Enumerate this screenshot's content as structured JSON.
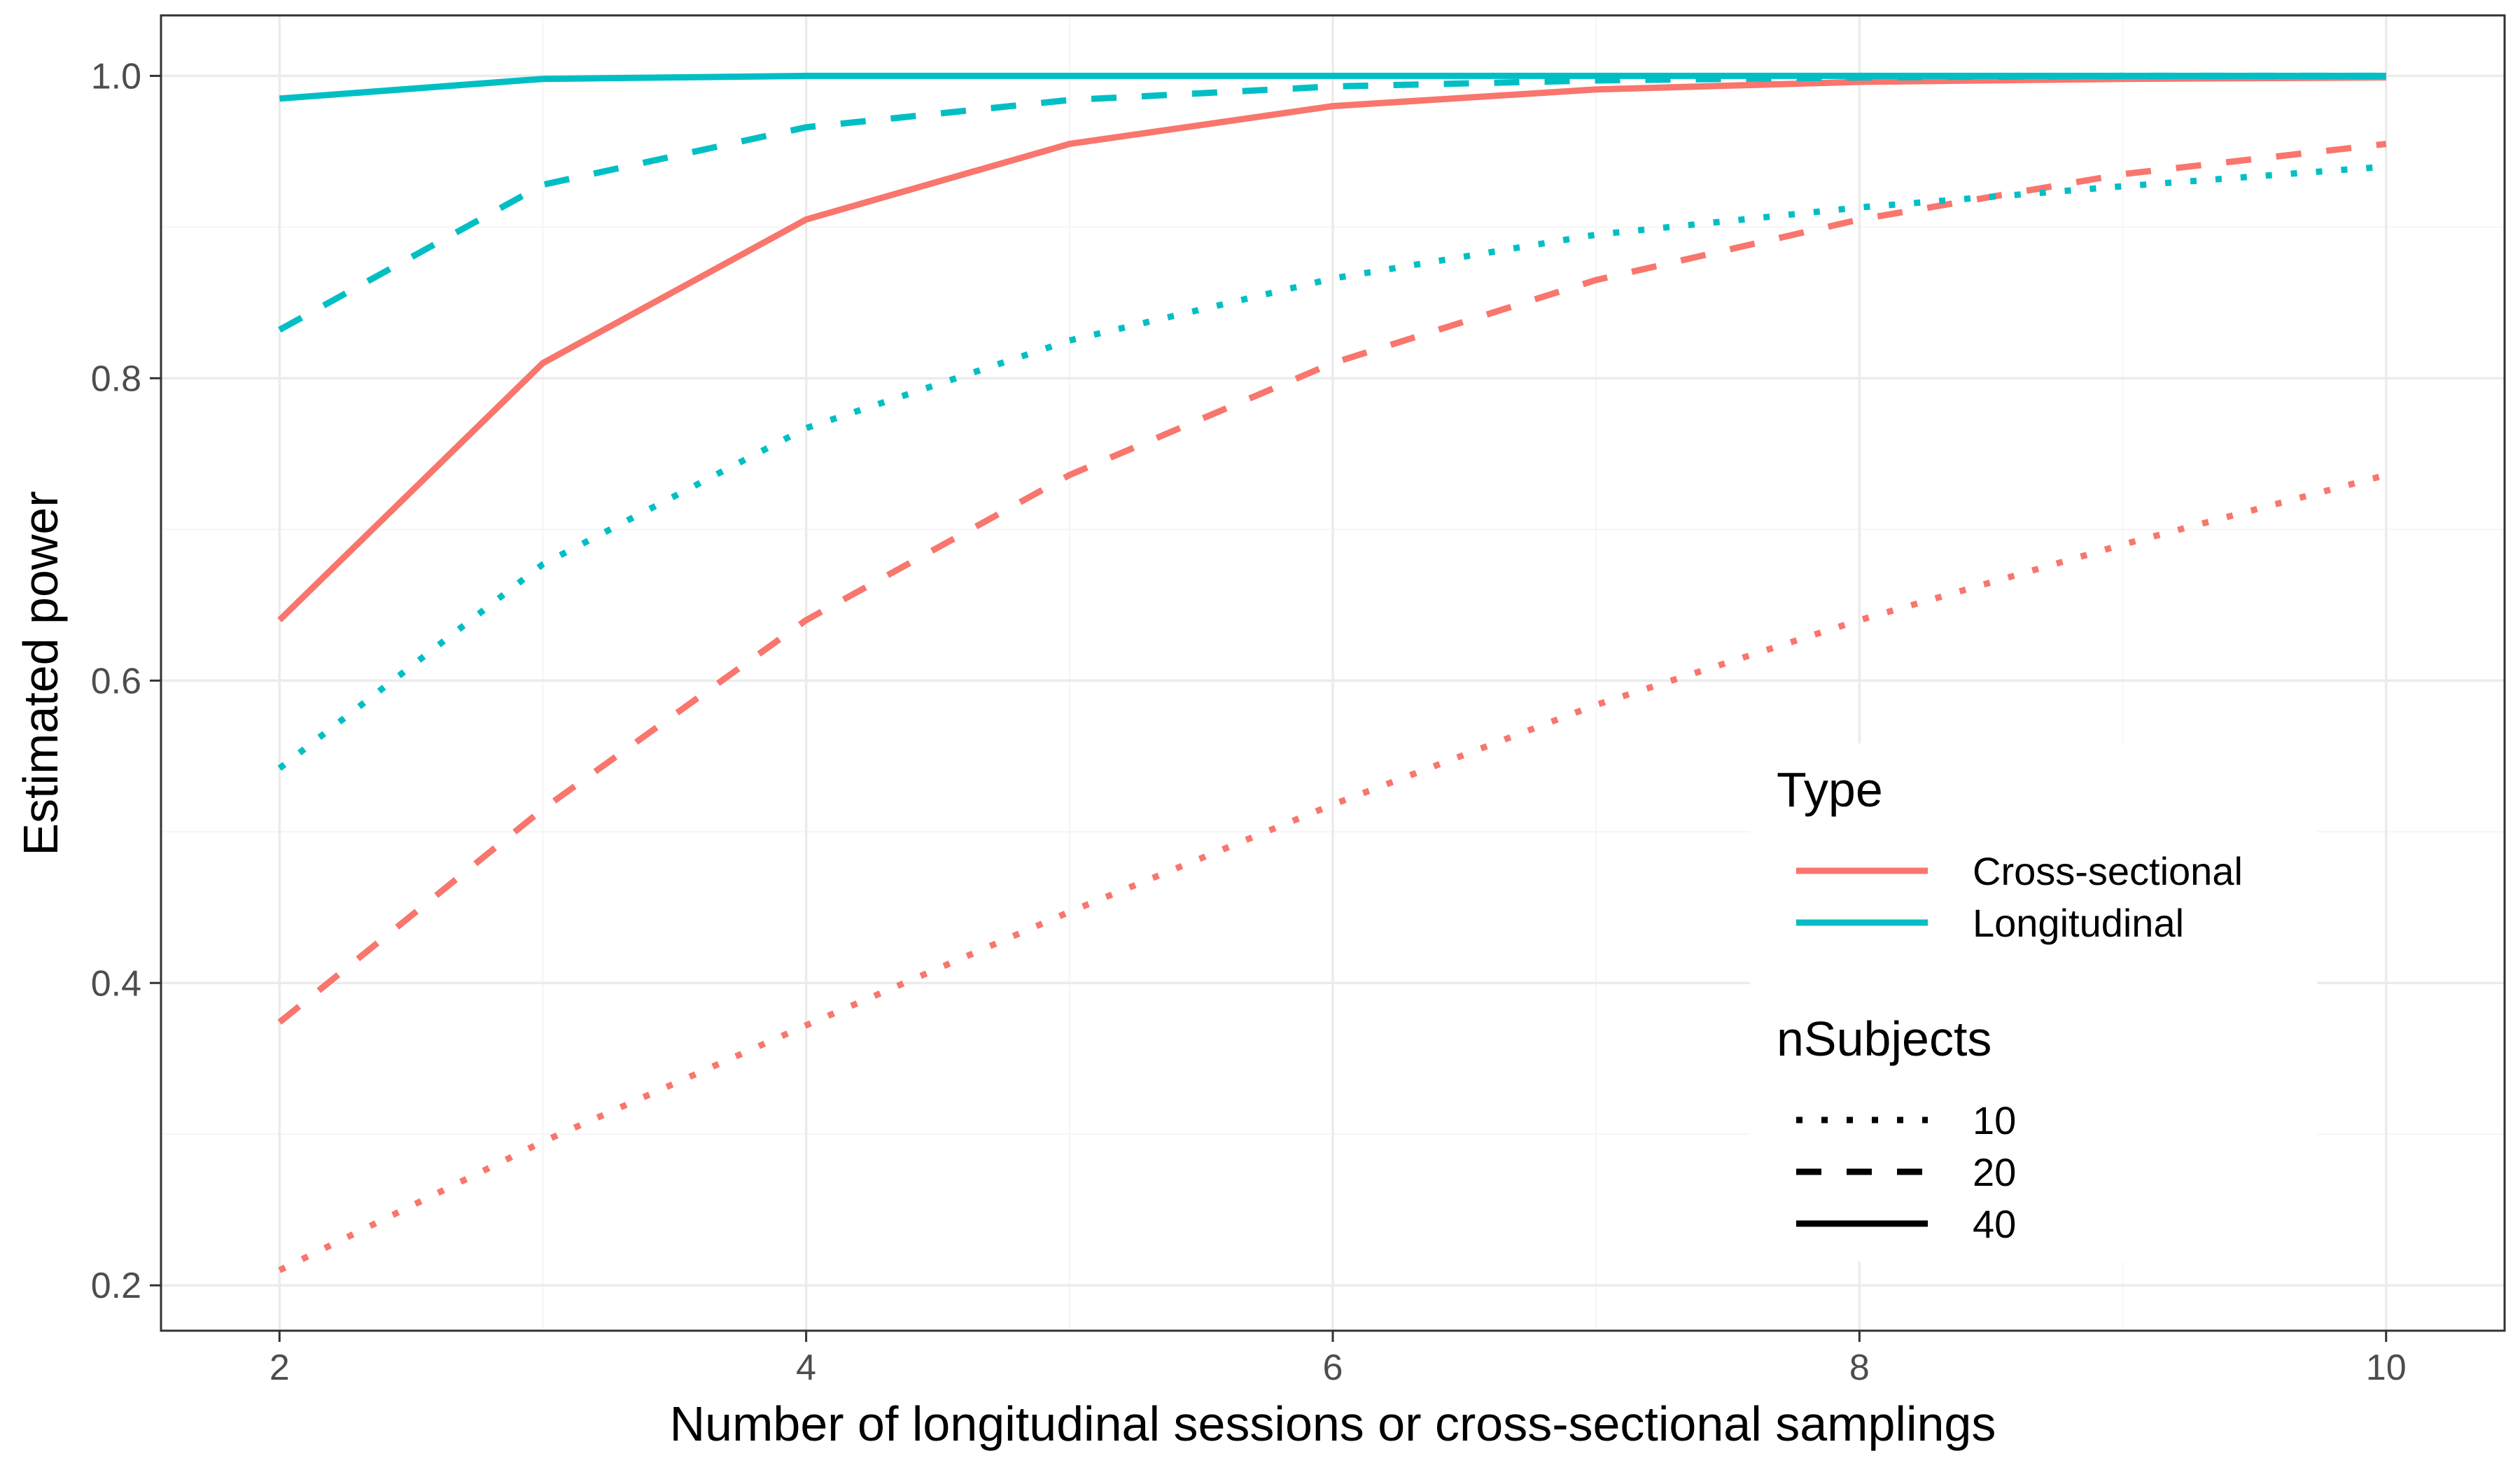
{
  "chart_data": {
    "type": "line",
    "title": "",
    "xlabel": "Number of longitudinal sessions or cross-sectional samplings",
    "ylabel": "Estimated power",
    "xlim": [
      1.55,
      10.45
    ],
    "ylim": [
      0.17,
      1.04
    ],
    "x_ticks": [
      2,
      4,
      6,
      8,
      10
    ],
    "y_ticks": [
      0.2,
      0.4,
      0.6,
      0.8,
      1.0
    ],
    "x_tick_labels": [
      "2",
      "4",
      "6",
      "8",
      "10"
    ],
    "y_tick_labels": [
      "0.2",
      "0.4",
      "0.6",
      "0.8",
      "1.0"
    ],
    "grid": true,
    "legend_position": "bottom-right",
    "colors": {
      "Cross-sectional": "#f8766d",
      "Longitudinal": "#00bfc4",
      "panel_border": "#333333",
      "grid_major": "#ebebeb",
      "grid_minor": "#f5f5f5"
    },
    "legend": {
      "type_title": "Type",
      "type_entries": [
        "Cross-sectional",
        "Longitudinal"
      ],
      "nsubjects_title": "nSubjects",
      "nsubjects_entries": [
        "10",
        "20",
        "40"
      ]
    },
    "x": [
      2,
      3,
      4,
      5,
      6,
      7,
      8,
      9,
      10
    ],
    "series": [
      {
        "name": "Cross-sectional, nSubjects 10",
        "type": "Cross-sectional",
        "nSubjects": "10",
        "values": [
          0.21,
          0.295,
          0.372,
          0.447,
          0.518,
          0.584,
          0.64,
          0.69,
          0.736
        ]
      },
      {
        "name": "Cross-sectional, nSubjects 20",
        "type": "Cross-sectional",
        "nSubjects": "20",
        "values": [
          0.374,
          0.515,
          0.64,
          0.736,
          0.81,
          0.865,
          0.905,
          0.935,
          0.955
        ]
      },
      {
        "name": "Cross-sectional, nSubjects 40",
        "type": "Cross-sectional",
        "nSubjects": "40",
        "values": [
          0.64,
          0.81,
          0.905,
          0.955,
          0.98,
          0.991,
          0.996,
          0.998,
          0.999
        ]
      },
      {
        "name": "Longitudinal, nSubjects 10",
        "type": "Longitudinal",
        "nSubjects": "10",
        "values": [
          0.542,
          0.677,
          0.767,
          0.825,
          0.866,
          0.895,
          0.913,
          0.927,
          0.94
        ]
      },
      {
        "name": "Longitudinal, nSubjects 20",
        "type": "Longitudinal",
        "nSubjects": "20",
        "values": [
          0.832,
          0.928,
          0.966,
          0.984,
          0.993,
          0.997,
          0.999,
          1.0,
          1.0
        ]
      },
      {
        "name": "Longitudinal, nSubjects 40",
        "type": "Longitudinal",
        "nSubjects": "40",
        "values": [
          0.985,
          0.998,
          1.0,
          1.0,
          1.0,
          1.0,
          1.0,
          1.0,
          1.0
        ]
      }
    ]
  }
}
